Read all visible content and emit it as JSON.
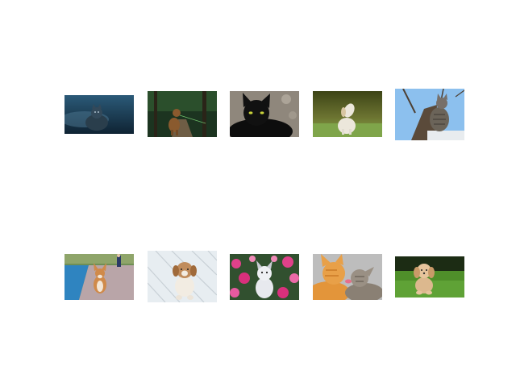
{
  "gallery": {
    "images": [
      {
        "subject": "cat-in-blue-mist",
        "palette": {
          "bg": "#1f3f55",
          "accent": "#6f93a8"
        }
      },
      {
        "subject": "dog-on-forest-path",
        "palette": {
          "bg": "#1f3a22",
          "accent": "#8a5a2e"
        }
      },
      {
        "subject": "black-cat-yellow-eyes",
        "palette": {
          "bg": "#9a9186",
          "accent": "#111111"
        }
      },
      {
        "subject": "white-puppy-howling",
        "palette": {
          "bg": "#5f6a2a",
          "accent": "#e9e4d6"
        }
      },
      {
        "subject": "tabby-cat-in-tree",
        "palette": {
          "bg": "#8fc2ef",
          "accent": "#6b6459"
        }
      },
      {
        "subject": "corgi-on-boardwalk",
        "palette": {
          "bg": "#3b8fbf",
          "accent": "#d08a4a"
        }
      },
      {
        "subject": "puppy-on-white-planks",
        "palette": {
          "bg": "#e9eef2",
          "accent": "#b8875a"
        }
      },
      {
        "subject": "puppy-in-pink-flowers",
        "palette": {
          "bg": "#2c4a2a",
          "accent": "#e0418a"
        }
      },
      {
        "subject": "two-cats-nuzzling",
        "palette": {
          "bg": "#b9b9b9",
          "accent": "#e3953a"
        }
      },
      {
        "subject": "fluffy-puppy-on-grass",
        "palette": {
          "bg": "#1b2a12",
          "accent": "#d9b48a"
        }
      }
    ]
  }
}
